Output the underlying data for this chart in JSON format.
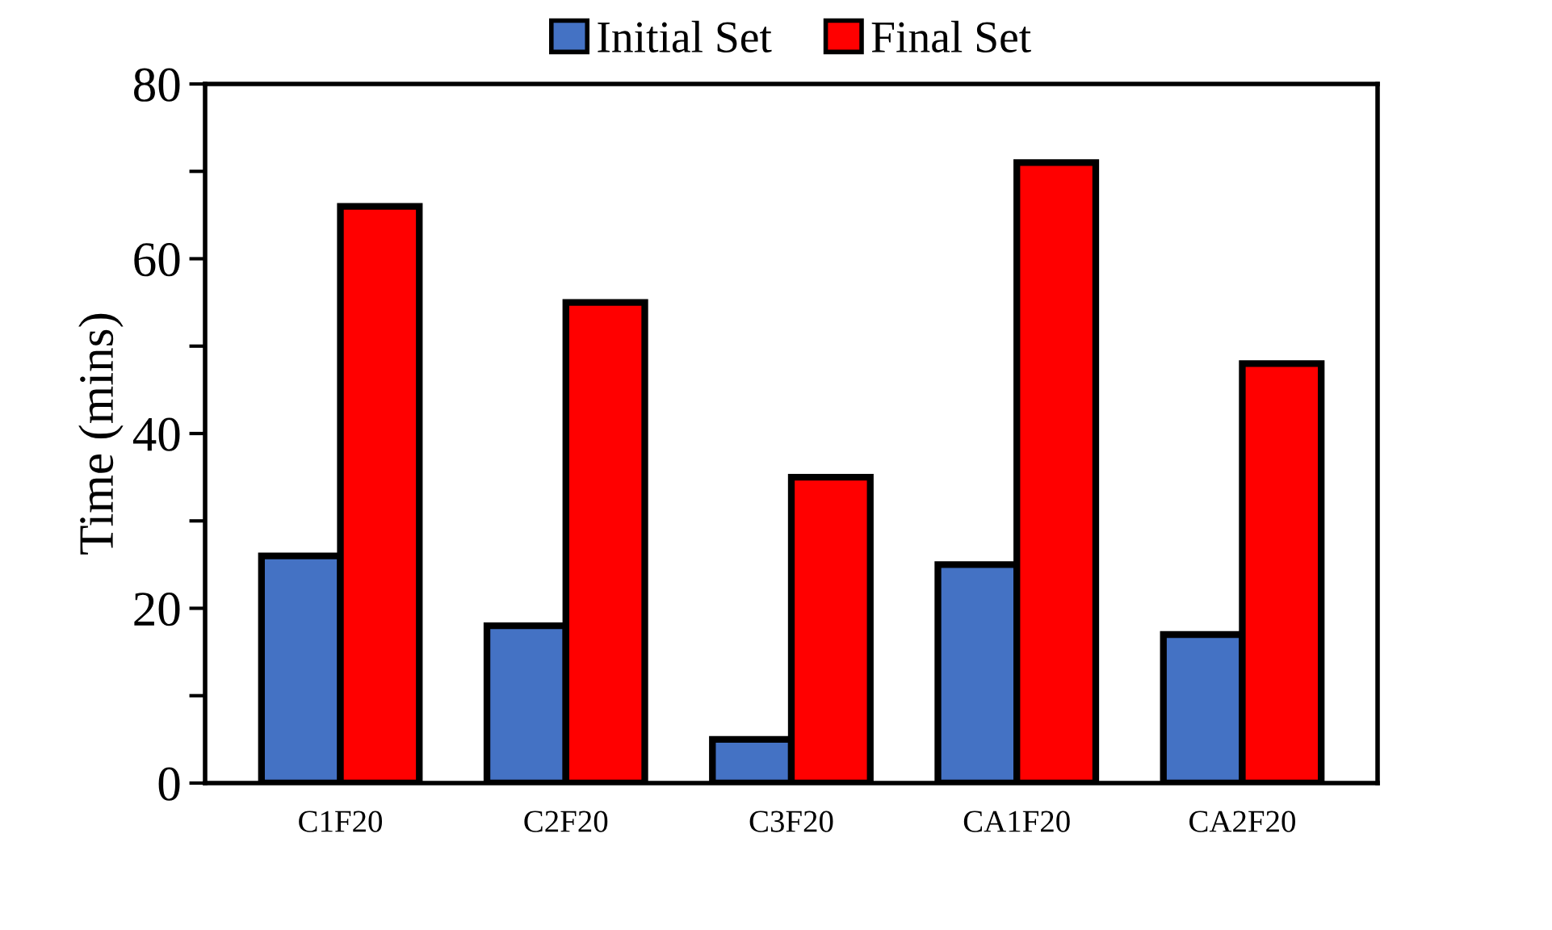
{
  "chart_data": {
    "type": "bar",
    "ylabel": "Time (mins)",
    "categories": [
      "C1F20",
      "C2F20",
      "C3F20",
      "CA1F20",
      "CA2F20"
    ],
    "series": [
      {
        "name": "Initial Set",
        "color": "#4472c4",
        "values": [
          26,
          18,
          5,
          25,
          17
        ]
      },
      {
        "name": "Final Set",
        "color": "#ff0000",
        "values": [
          66,
          55,
          35,
          71,
          48
        ]
      }
    ],
    "ylim": [
      0,
      80
    ],
    "yticks": [
      0,
      {
        "value": 10,
        "label": null
      },
      20,
      {
        "value": 30,
        "label": null
      },
      40,
      {
        "value": 50,
        "label": null
      },
      60,
      {
        "value": 70,
        "label": null
      },
      80
    ],
    "legend": "top",
    "grid": false
  }
}
